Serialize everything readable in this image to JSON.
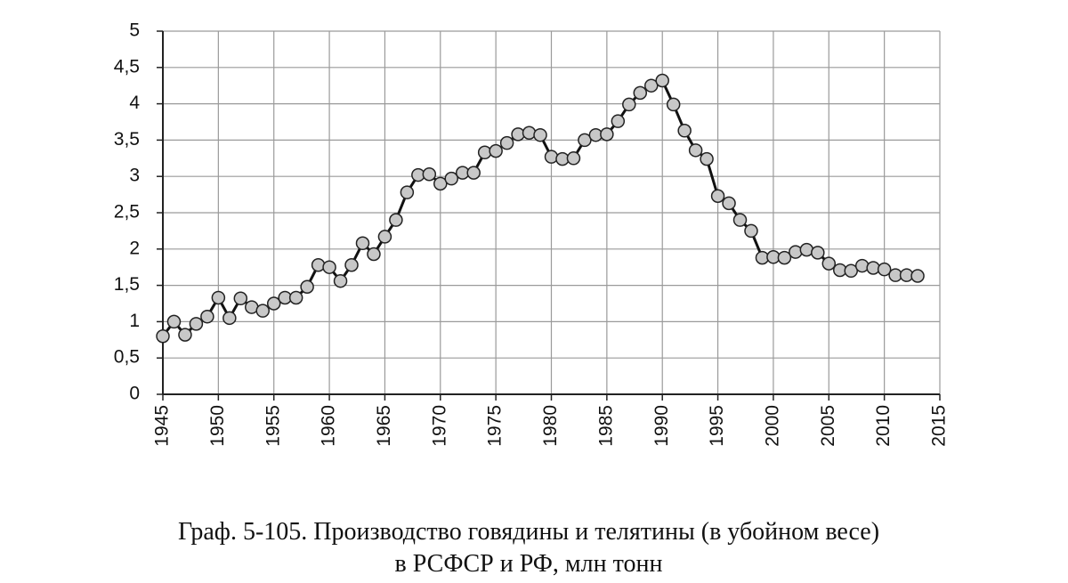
{
  "chart_data": {
    "type": "line",
    "title_lines": [
      "Граф. 5-105. Производство говядины и телятины (в убойном весе)",
      "в РСФСР и РФ, млн тонн"
    ],
    "x": [
      1945,
      1946,
      1947,
      1948,
      1949,
      1950,
      1951,
      1952,
      1953,
      1954,
      1955,
      1956,
      1957,
      1958,
      1959,
      1960,
      1961,
      1962,
      1963,
      1964,
      1965,
      1966,
      1967,
      1968,
      1969,
      1970,
      1971,
      1972,
      1973,
      1974,
      1975,
      1976,
      1977,
      1978,
      1979,
      1980,
      1981,
      1982,
      1983,
      1984,
      1985,
      1986,
      1987,
      1988,
      1989,
      1990,
      1991,
      1992,
      1993,
      1994,
      1995,
      1996,
      1997,
      1998,
      1999,
      2000,
      2001,
      2002,
      2003,
      2004,
      2005,
      2006,
      2007,
      2008,
      2009,
      2010,
      2011,
      2012,
      2013
    ],
    "series": [
      {
        "color": "#c8c8c8",
        "values": [
          0.8,
          1.0,
          0.82,
          0.97,
          1.07,
          1.33,
          1.05,
          1.32,
          1.2,
          1.15,
          1.25,
          1.33,
          1.33,
          1.48,
          1.78,
          1.75,
          1.56,
          1.78,
          2.08,
          1.93,
          2.17,
          2.4,
          2.78,
          3.02,
          3.03,
          2.9,
          2.97,
          3.05,
          3.05,
          3.33,
          3.35,
          3.46,
          3.58,
          3.6,
          3.57,
          3.27,
          3.24,
          3.25,
          3.5,
          3.57,
          3.58,
          3.76,
          3.99,
          4.15,
          4.25,
          4.32,
          3.99,
          3.63,
          3.36,
          3.24,
          2.73,
          2.63,
          2.4,
          2.25,
          1.88,
          1.89,
          1.88,
          1.96,
          1.99,
          1.95,
          1.8,
          1.71,
          1.7,
          1.77,
          1.74,
          1.72,
          1.64,
          1.64,
          1.63
        ]
      }
    ],
    "xlim": [
      1945,
      2015
    ],
    "xticks": [
      1945,
      1950,
      1955,
      1960,
      1965,
      1970,
      1975,
      1980,
      1985,
      1990,
      1995,
      2000,
      2005,
      2010,
      2015
    ],
    "ylim": [
      0,
      5
    ],
    "yticks": [
      0,
      {
        "value": 0.5,
        "label": "0,5"
      },
      1,
      {
        "value": 1.5,
        "label": "1,5"
      },
      2,
      {
        "value": 2.5,
        "label": "2,5"
      },
      3,
      {
        "value": 3.5,
        "label": "3,5"
      },
      4,
      {
        "value": 4.5,
        "label": "4,5"
      },
      5
    ],
    "grid": true
  }
}
